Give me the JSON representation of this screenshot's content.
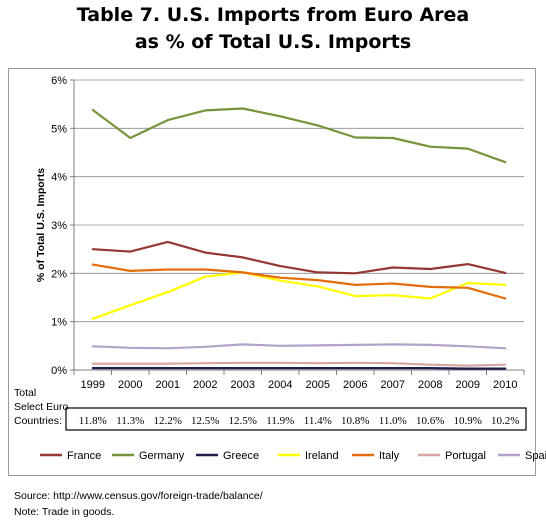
{
  "header": {
    "title_line1": "Table 7. U.S. Imports from Euro Area",
    "title_line2": "as % of Total U.S. Imports"
  },
  "footer": {
    "source": "Source: http://www.census.gov/foreign-trade/balance/",
    "note": "Note: Trade in goods."
  },
  "chart_data": {
    "type": "line",
    "title": "Table 7. U.S. Imports from Euro Area as % of Total U.S. Imports",
    "xlabel": "",
    "ylabel": "% of Total U.S. Imports",
    "x": [
      "1999",
      "2000",
      "2001",
      "2002",
      "2003",
      "2004",
      "2005",
      "2006",
      "2007",
      "2008",
      "2009",
      "2010"
    ],
    "ylim": [
      0,
      6
    ],
    "yticks": [
      "0%",
      "1%",
      "2%",
      "3%",
      "4%",
      "5%",
      "6%"
    ],
    "grid": "horizontal",
    "legend_position": "bottom",
    "series": [
      {
        "name": "France",
        "color": "#953735",
        "values": [
          2.5,
          2.45,
          2.65,
          2.43,
          2.33,
          2.15,
          2.02,
          2.0,
          2.12,
          2.09,
          2.19,
          2.01
        ]
      },
      {
        "name": "Germany",
        "color": "#77933c",
        "values": [
          5.38,
          4.8,
          5.17,
          5.37,
          5.41,
          5.25,
          5.06,
          4.81,
          4.8,
          4.62,
          4.58,
          4.3
        ]
      },
      {
        "name": "Greece",
        "color": "#1f1f4f",
        "values": [
          0.04,
          0.04,
          0.04,
          0.04,
          0.04,
          0.04,
          0.04,
          0.04,
          0.04,
          0.04,
          0.03,
          0.03
        ]
      },
      {
        "name": "Ireland",
        "color": "#ffff00",
        "values": [
          1.06,
          1.34,
          1.61,
          1.93,
          2.02,
          1.85,
          1.73,
          1.53,
          1.55,
          1.48,
          1.8,
          1.76
        ]
      },
      {
        "name": "Italy",
        "color": "#e46c0a",
        "values": [
          2.18,
          2.05,
          2.08,
          2.08,
          2.02,
          1.91,
          1.86,
          1.76,
          1.79,
          1.72,
          1.7,
          1.48
        ]
      },
      {
        "name": "Portugal",
        "color": "#d9a6a4",
        "values": [
          0.13,
          0.13,
          0.13,
          0.14,
          0.15,
          0.15,
          0.14,
          0.15,
          0.14,
          0.11,
          0.09,
          0.11
        ]
      },
      {
        "name": "Spain",
        "color": "#b3a2c7",
        "values": [
          0.49,
          0.46,
          0.45,
          0.48,
          0.53,
          0.5,
          0.51,
          0.52,
          0.53,
          0.52,
          0.49,
          0.45
        ]
      }
    ],
    "totals": {
      "label_lines": [
        "Total",
        "Select Euro",
        "Countries:"
      ],
      "values": [
        "11.8%",
        "11.3%",
        "12.2%",
        "12.5%",
        "12.5%",
        "11.9%",
        "11.4%",
        "10.8%",
        "11.0%",
        "10.6%",
        "10.9%",
        "10.2%"
      ]
    }
  }
}
